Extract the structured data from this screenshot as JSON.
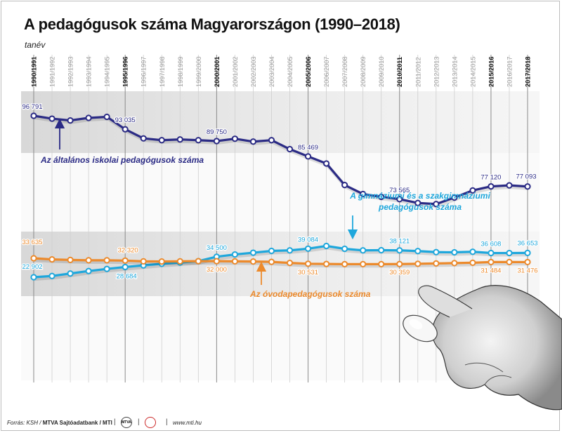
{
  "title": "A pedagógusok száma Magyarországon (1990–2018)",
  "unit_label": "tanév",
  "footer": {
    "source_prefix": "Forrás: KSH /",
    "source_bold": "MTVA Sajtóadatbank / MTI",
    "logo_text": "MTVA",
    "website": "www.mti.hu"
  },
  "colors": {
    "general": "#2b2b85",
    "gymnasium": "#1ea7dc",
    "kindergarten": "#ec8a2c"
  },
  "chart_data": {
    "type": "line",
    "x_label": "tanév",
    "categories": [
      "1990/1991",
      "1991/1992",
      "1992/1993",
      "1993/1994",
      "1994/1995",
      "1995/1996",
      "1996/1997",
      "1997/1998",
      "1998/1999",
      "1999/2000",
      "2000/2001",
      "2001/2002",
      "2002/2003",
      "2003/2004",
      "2004/2005",
      "2005/2006",
      "2006/2007",
      "2007/2008",
      "2008/2009",
      "2009/2010",
      "2010/2011",
      "2011/2012",
      "2012/2013",
      "2013/2014",
      "2014/2015",
      "2015/2016",
      "2016/2017",
      "2017/2018"
    ],
    "bold_categories": [
      "1990/1991",
      "1995/1996",
      "2000/2001",
      "2005/2006",
      "2010/2011",
      "2015/2016",
      "2017/2018"
    ],
    "series": [
      {
        "name": "Az általános iskolai pedagógusok száma",
        "color": "#2b2b85",
        "values": [
          96791,
          96000,
          95500,
          96200,
          96500,
          93035,
          90500,
          90000,
          90200,
          90000,
          89750,
          90400,
          89600,
          90000,
          87500,
          85469,
          83500,
          77500,
          75000,
          74200,
          73565,
          72500,
          72200,
          74000,
          76000,
          77120,
          77400,
          77093
        ],
        "labels": [
          {
            "index": 0,
            "text": "96 791"
          },
          {
            "index": 5,
            "text": "93 035"
          },
          {
            "index": 10,
            "text": "89 750"
          },
          {
            "index": 15,
            "text": "85 469"
          },
          {
            "index": 20,
            "text": "73 565"
          },
          {
            "index": 25,
            "text": "77 120"
          },
          {
            "index": 27,
            "text": "77 093"
          }
        ]
      },
      {
        "name": "A gimnáziumi és a szakgimnáziumi pedagógusok száma",
        "color": "#1ea7dc",
        "values": [
          22902,
          23600,
          25000,
          26400,
          27600,
          28684,
          29600,
          30500,
          31200,
          32000,
          34500,
          35800,
          36800,
          37800,
          38100,
          39084,
          40600,
          39000,
          38100,
          38200,
          38121,
          37700,
          37100,
          37000,
          37300,
          36608,
          36600,
          36653
        ],
        "labels": [
          {
            "index": 0,
            "text": "22 902"
          },
          {
            "index": 5,
            "text": "28 684"
          },
          {
            "index": 10,
            "text": "34 500"
          },
          {
            "index": 15,
            "text": "39 084"
          },
          {
            "index": 20,
            "text": "38 121"
          },
          {
            "index": 25,
            "text": "36 608"
          },
          {
            "index": 27,
            "text": "36 653"
          }
        ]
      },
      {
        "name": "Az óvodapedagógusok száma",
        "color": "#ec8a2c",
        "values": [
          33635,
          33000,
          32700,
          32500,
          32500,
          32320,
          31900,
          31800,
          31900,
          32000,
          32000,
          31900,
          31800,
          31600,
          31000,
          30531,
          30400,
          30300,
          30300,
          30300,
          30359,
          30500,
          30700,
          30900,
          31100,
          31484,
          31500,
          31476
        ],
        "labels": [
          {
            "index": 0,
            "text": "33 635"
          },
          {
            "index": 5,
            "text": "32 320"
          },
          {
            "index": 10,
            "text": "32 000"
          },
          {
            "index": 15,
            "text": "30 531"
          },
          {
            "index": 20,
            "text": "30 359"
          },
          {
            "index": 25,
            "text": "31 484"
          },
          {
            "index": 27,
            "text": "31 476"
          }
        ]
      }
    ]
  }
}
